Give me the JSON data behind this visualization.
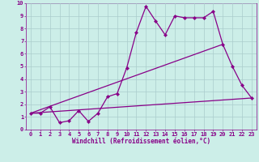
{
  "xlabel": "Windchill (Refroidissement éolien,°C)",
  "bg_color": "#cceee8",
  "grid_color": "#aacccc",
  "line_color": "#880088",
  "spine_color": "#880088",
  "xlim": [
    -0.5,
    23.5
  ],
  "ylim": [
    0,
    10
  ],
  "xticks": [
    0,
    1,
    2,
    3,
    4,
    5,
    6,
    7,
    8,
    9,
    10,
    11,
    12,
    13,
    14,
    15,
    16,
    17,
    18,
    19,
    20,
    21,
    22,
    23
  ],
  "yticks": [
    0,
    1,
    2,
    3,
    4,
    5,
    6,
    7,
    8,
    9,
    10
  ],
  "line1_x": [
    0,
    1,
    2,
    3,
    4,
    5,
    6,
    7,
    8,
    9,
    10,
    11,
    12,
    13,
    14,
    15,
    16,
    17,
    18,
    19,
    20,
    21,
    22,
    23
  ],
  "line1_y": [
    1.3,
    1.3,
    1.8,
    0.55,
    0.7,
    1.5,
    0.65,
    1.3,
    2.6,
    2.85,
    4.9,
    7.7,
    9.75,
    8.6,
    7.5,
    9.0,
    8.85,
    8.85,
    8.85,
    9.35,
    6.75,
    5.0,
    3.5,
    2.5
  ],
  "line2_x": [
    0,
    23
  ],
  "line2_y": [
    1.3,
    2.5
  ],
  "line3_x": [
    0,
    20
  ],
  "line3_y": [
    1.3,
    6.75
  ],
  "tick_fontsize": 5.0,
  "xlabel_fontsize": 5.5,
  "linewidth": 0.9,
  "markersize": 2.2
}
